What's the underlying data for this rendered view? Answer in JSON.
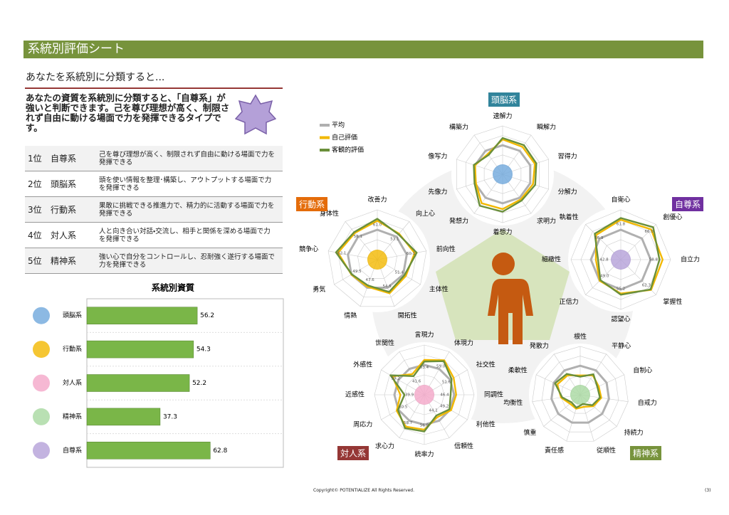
{
  "header": {
    "title": "系統別評価シート"
  },
  "subtitle": "あなたを系統別に分類すると...",
  "lead": "あなたの資質を系統別に分類すると、「自尊系」が強いと判断できます。己を尊び理想が高く、制限されず自由に動ける場面で力を発揮できるタイプです。",
  "ranking": [
    {
      "rank": "1位",
      "name": "自尊系",
      "text": "己を尊び理想が高く、制限されず自由に動ける場面で力を発揮できる"
    },
    {
      "rank": "2位",
      "name": "頭脳系",
      "text": "頭を使い情報を整理･構築し、アウトプットする場面で力を発揮できる"
    },
    {
      "rank": "3位",
      "name": "行動系",
      "text": "果敢に挑戦できる推進力で、精力的に活動する場面で力を発揮できる"
    },
    {
      "rank": "4位",
      "name": "対人系",
      "text": "人と向き合い対話・交流し、相手と関係を深める場面で力を発揮できる"
    },
    {
      "rank": "5位",
      "name": "精神系",
      "text": "強い心で自分をコントロールし、忍耐強く遂行する場面で力を発揮できる"
    }
  ],
  "chart_data": [
    {
      "type": "bar",
      "title": "系統別資質",
      "categories": [
        "頭脳系",
        "行動系",
        "対人系",
        "精神系",
        "自尊系"
      ],
      "values": [
        56.2,
        54.3,
        52.2,
        37.3,
        62.8
      ],
      "color": "#7ab648",
      "xlim": [
        0,
        100
      ]
    },
    {
      "type": "radar",
      "title": "頭脳系",
      "categories": [
        "速解力",
        "瞬解力",
        "習得力",
        "分解力",
        "求明力",
        "着想力",
        "発想力",
        "先像力",
        "像写力",
        "構築力"
      ],
      "rlim": [
        20,
        70
      ],
      "series": [
        {
          "name": "平均",
          "color": "#b0b0b0",
          "values": [
            50,
            50,
            50,
            50,
            50,
            50,
            50,
            50,
            50,
            50
          ]
        },
        {
          "name": "自己評価",
          "color": "#f2b800",
          "values": [
            56,
            55,
            55,
            53,
            52,
            56,
            57,
            49,
            50,
            46
          ]
        },
        {
          "name": "客観的評価",
          "color": "#6a8f3a",
          "values": [
            57.5,
            57.3,
            56.6,
            55.4,
            53.5,
            58.7,
            60.2,
            50.5,
            51.3,
            44.6
          ]
        }
      ]
    },
    {
      "type": "radar",
      "title": "行動系",
      "categories": [
        "改善力",
        "向上心",
        "前向性",
        "主体性",
        "開拓性",
        "情熱",
        "勇気",
        "競争心",
        "身体性"
      ],
      "rlim": [
        20,
        70
      ],
      "series": [
        {
          "values": [
            50,
            50,
            50,
            50,
            50,
            50,
            50,
            50,
            50
          ]
        },
        {
          "values": [
            59,
            54,
            58,
            53,
            56,
            49,
            50,
            60,
            55
          ]
        },
        {
          "values": [
            61.0,
            53.1,
            60.1,
            51.4,
            54.5,
            47.6,
            49.5,
            62.1,
            56.1
          ],
          "value_labels": [
            "61.0",
            "53.1",
            "60.1",
            "51.4",
            "54.5",
            "47.6",
            "49.5",
            "62.1",
            "56.1"
          ]
        }
      ]
    },
    {
      "type": "radar",
      "title": "自尊系",
      "categories": [
        "自衛心",
        "創優心",
        "自立力",
        "掌握性",
        "認望心",
        "正信力",
        "細緻性",
        "執着性"
      ],
      "rlim": [
        20,
        70
      ],
      "series": [
        {
          "values": [
            50,
            50,
            50,
            50,
            50,
            50,
            50,
            50
          ]
        },
        {
          "values": [
            60,
            63,
            62,
            63,
            54,
            50,
            45,
            55
          ]
        },
        {
          "values": [
            61.8,
            66.0,
            58.8,
            62.3,
            55.2,
            49.0,
            42.8,
            56.9
          ],
          "value_labels": [
            "61.8",
            "66.0",
            "58.8",
            "62.3",
            "55.2",
            "49.0",
            "42.8",
            "56.9"
          ]
        }
      ]
    },
    {
      "type": "radar",
      "title": "対人系",
      "categories": [
        "言現力",
        "体現力",
        "社交性",
        "同調性",
        "利他性",
        "信頼性",
        "統率力",
        "求心力",
        "周応力",
        "近感性",
        "外感性",
        "世関性"
      ],
      "rlim": [
        20,
        70
      ],
      "series": [
        {
          "values": [
            50,
            50,
            50,
            50,
            50,
            50,
            50,
            50,
            50,
            50,
            50,
            50
          ]
        },
        {
          "values": [
            55,
            60,
            54,
            52,
            51,
            46,
            55,
            57,
            52,
            44,
            57,
            44
          ]
        },
        {
          "values": [
            53.4,
            59.0,
            51.6,
            46.4,
            49.2,
            44.1,
            56.8,
            58.7,
            50.5,
            39.9,
            59.2,
            41.6
          ],
          "value_labels": [
            "53.4",
            "59.0",
            "51.6",
            "46.4",
            "49.2",
            "44.1",
            "56.8",
            "58.7",
            "50.5",
            "39.9",
            "59.2",
            "41.6"
          ]
        }
      ]
    },
    {
      "type": "radar",
      "title": "精神系",
      "categories": [
        "根性",
        "平静心",
        "自制心",
        "自戒力",
        "持続力",
        "従順性",
        "責任感",
        "慎重",
        "均衡性",
        "柔軟性",
        "発散力"
      ],
      "rlim": [
        20,
        70
      ],
      "series": [
        {
          "values": [
            50,
            50,
            50,
            50,
            50,
            50,
            50,
            50,
            50,
            50,
            50
          ]
        },
        {
          "values": [
            40,
            44,
            41,
            42,
            38,
            33,
            35,
            34,
            40,
            46,
            44
          ]
        },
        {
          "values": [
            38.7,
            45.2,
            39.5,
            40.6,
            36.5,
            29.9,
            33.9,
            31.9,
            38.8,
            48.6,
            45.6
          ]
        }
      ]
    }
  ],
  "footer": {
    "copyright": "Copyright© POTENTIALIZE All Rights Reserved.",
    "page": "(3)"
  }
}
